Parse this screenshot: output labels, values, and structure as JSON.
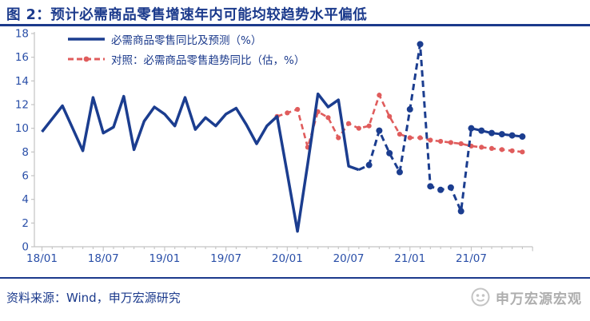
{
  "header": {
    "title": "图 2：预计必需商品零售增速年内可能均较趋势水平偏低"
  },
  "legend": {
    "items": [
      {
        "label": "必需商品零售同比及预测（%）",
        "style": "solid-line"
      },
      {
        "label": "对照：必需商品零售趋势同比（估，%）",
        "style": "dashed-line-with-dot"
      }
    ]
  },
  "footer": {
    "source": "资料来源：Wind，申万宏源研究",
    "watermark": "申万宏源宏观"
  },
  "colors": {
    "navy": "#1b3a8c",
    "line_blue": "#1b3d8f",
    "line_red": "#e05c5c",
    "axis_gray": "#c3c3c3",
    "tick_label_blue": "#2a4fa8",
    "watermark_gray": "#aeaeae"
  },
  "chart_data": {
    "type": "line",
    "title": "图 2：预计必需商品零售增速年内可能均较趋势水平偏低",
    "xlabel": "",
    "ylabel": "",
    "ylim": [
      0,
      18
    ],
    "ytick_step": 2,
    "yticks": [
      0,
      2,
      4,
      6,
      8,
      10,
      12,
      14,
      16,
      18
    ],
    "x_tick_labels": [
      "18/01",
      "18/07",
      "19/01",
      "19/07",
      "20/01",
      "20/07",
      "21/01",
      "21/07"
    ],
    "grid": false,
    "legend_position": "top-left",
    "months": [
      "18/01",
      "18/02",
      "18/03",
      "18/04",
      "18/05",
      "18/06",
      "18/07",
      "18/08",
      "18/09",
      "18/10",
      "18/11",
      "18/12",
      "19/01",
      "19/02",
      "19/03",
      "19/04",
      "19/05",
      "19/06",
      "19/07",
      "19/08",
      "19/09",
      "19/10",
      "19/11",
      "19/12",
      "20/01",
      "20/02",
      "20/03",
      "20/04",
      "20/05",
      "20/06",
      "20/07",
      "20/08",
      "20/09",
      "20/10",
      "20/11",
      "20/12",
      "21/01",
      "21/02",
      "21/03",
      "21/04",
      "21/05",
      "21/06",
      "21/07",
      "21/08",
      "21/09",
      "21/10",
      "21/11",
      "21/12"
    ],
    "series": [
      {
        "name": "必需商品零售同比及预测（%）",
        "color": "#1b3d8f",
        "line_style": "solid-then-dashed",
        "solid_until_index": 31,
        "marker_from_index": 32,
        "values": [
          9.7,
          10.8,
          11.9,
          10.0,
          8.1,
          12.6,
          9.6,
          10.1,
          12.7,
          8.2,
          10.6,
          11.8,
          11.2,
          10.2,
          12.6,
          9.9,
          10.9,
          10.2,
          11.2,
          11.7,
          10.3,
          8.7,
          10.2,
          11.0,
          6.2,
          1.3,
          7.0,
          12.9,
          11.8,
          12.4,
          6.8,
          6.5,
          6.9,
          9.8,
          7.9,
          6.3,
          11.6,
          17.1,
          5.1,
          4.8,
          5.0,
          3.0,
          10.0,
          9.8,
          9.6,
          9.5,
          9.4,
          9.3
        ]
      },
      {
        "name": "对照：必需商品零售趋势同比（估，%）",
        "color": "#e05c5c",
        "line_style": "dashed-with-dots",
        "values": [
          null,
          null,
          null,
          null,
          null,
          null,
          null,
          null,
          null,
          null,
          null,
          null,
          null,
          null,
          null,
          null,
          null,
          null,
          null,
          null,
          null,
          null,
          null,
          11.0,
          11.3,
          11.6,
          8.4,
          11.4,
          10.9,
          9.2,
          10.4,
          10.0,
          10.2,
          12.8,
          11.0,
          9.5,
          9.2,
          9.2,
          9.0,
          8.9,
          8.8,
          8.7,
          8.5,
          8.4,
          8.3,
          8.2,
          8.1,
          8.0
        ]
      }
    ]
  }
}
